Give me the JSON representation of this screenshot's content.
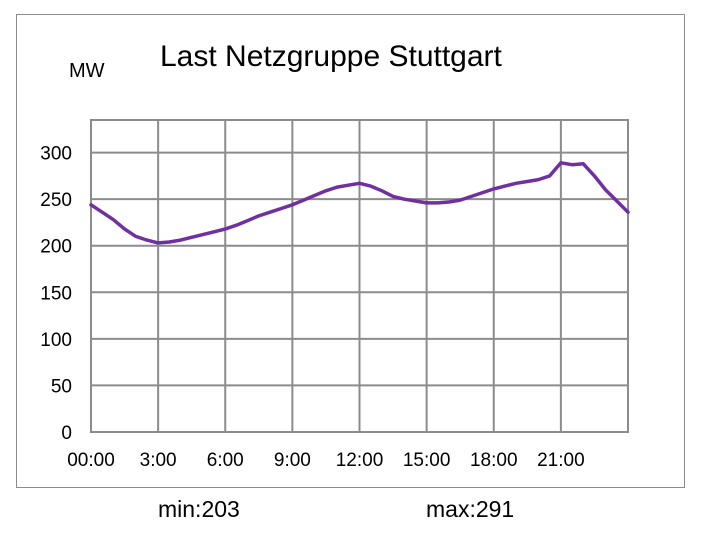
{
  "chart_data": {
    "type": "line",
    "title": "Last Netzgruppe Stuttgart",
    "ylabel": "MW",
    "xlabel": "",
    "x_ticks": [
      "00:00",
      "3:00",
      "6:00",
      "9:00",
      "12:00",
      "15:00",
      "18:00",
      "21:00"
    ],
    "y_ticks": [
      0,
      50,
      100,
      150,
      200,
      250,
      300
    ],
    "ylim": [
      0,
      335
    ],
    "xlim": [
      0,
      24
    ],
    "grid": true,
    "series": [
      {
        "color": "#7030a0",
        "x": [
          0,
          0.5,
          1,
          1.5,
          2,
          2.5,
          3,
          3.5,
          4,
          4.5,
          5,
          5.5,
          6,
          6.5,
          7,
          7.5,
          8,
          8.5,
          9,
          9.5,
          10,
          10.5,
          11,
          11.5,
          12,
          12.5,
          13,
          13.5,
          14,
          14.5,
          15,
          15.5,
          16,
          16.5,
          17,
          17.5,
          18,
          18.5,
          19,
          19.5,
          20,
          20.5,
          21,
          21.5,
          22,
          22.5,
          23,
          23.5,
          24
        ],
        "values": [
          244,
          236,
          228,
          218,
          210,
          206,
          203,
          204,
          206,
          209,
          212,
          215,
          218,
          222,
          227,
          232,
          236,
          240,
          244,
          249,
          254,
          259,
          263,
          265,
          267,
          264,
          259,
          253,
          250,
          248,
          246,
          246,
          247,
          249,
          253,
          257,
          261,
          264,
          267,
          269,
          271,
          275,
          289,
          287,
          288,
          275,
          260,
          248,
          236
        ]
      }
    ]
  },
  "stats": {
    "min_label": "min:203",
    "max_label": "max:291"
  }
}
